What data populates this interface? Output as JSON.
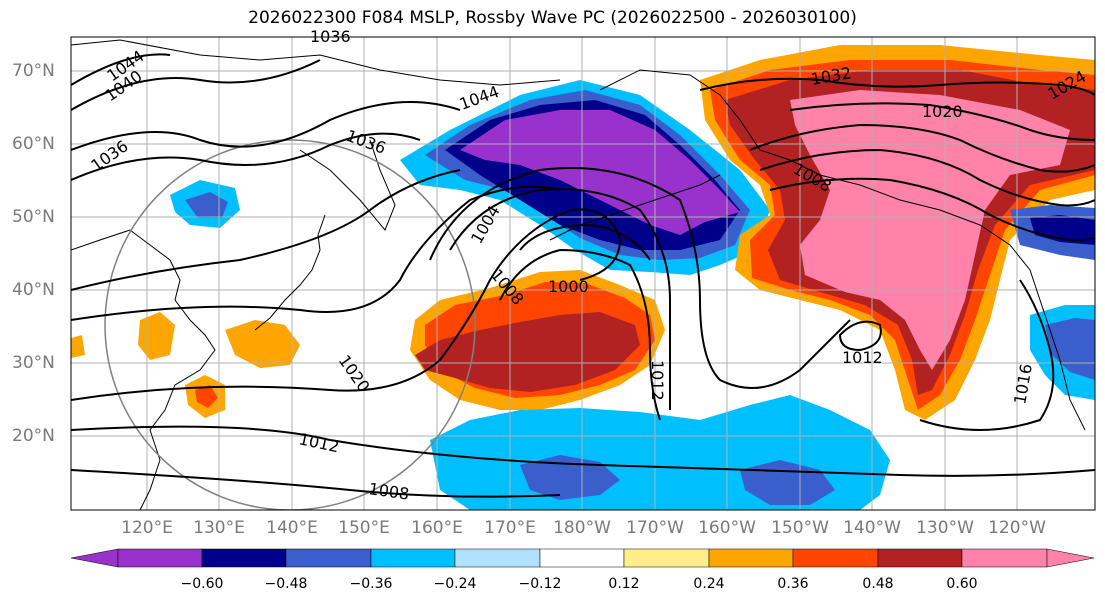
{
  "title": "2026022300 F084 MSLP, Rossby Wave PC (2026022500 - 2026030100)",
  "lat_labels": [
    "70°N",
    "60°N",
    "50°N",
    "40°N",
    "30°N",
    "20°N"
  ],
  "lon_labels": [
    "120°E",
    "130°E",
    "140°E",
    "150°E",
    "160°E",
    "170°E",
    "180°W",
    "170°W",
    "160°W",
    "150°W",
    "140°W",
    "130°W",
    "120°W"
  ],
  "isobar_labels": [
    "1036",
    "1044",
    "1040",
    "1036",
    "1044",
    "1036",
    "1004",
    "1008",
    "1000",
    "1020",
    "1012",
    "1008",
    "1012",
    "1012",
    "1016",
    "1032",
    "1020",
    "1008",
    "1024"
  ],
  "colorbar": {
    "ticks": [
      "−0.60",
      "−0.48",
      "−0.36",
      "−0.24",
      "−0.12",
      "0.12",
      "0.24",
      "0.36",
      "0.48",
      "0.60"
    ],
    "colors": [
      "#9932cc",
      "#00008b",
      "#3a5fcd",
      "#00bfff",
      "#b0e2ff",
      "#ffffff",
      "#ffec8b",
      "#ffa500",
      "#ff4500",
      "#b22222",
      "#ff82ab"
    ]
  }
}
